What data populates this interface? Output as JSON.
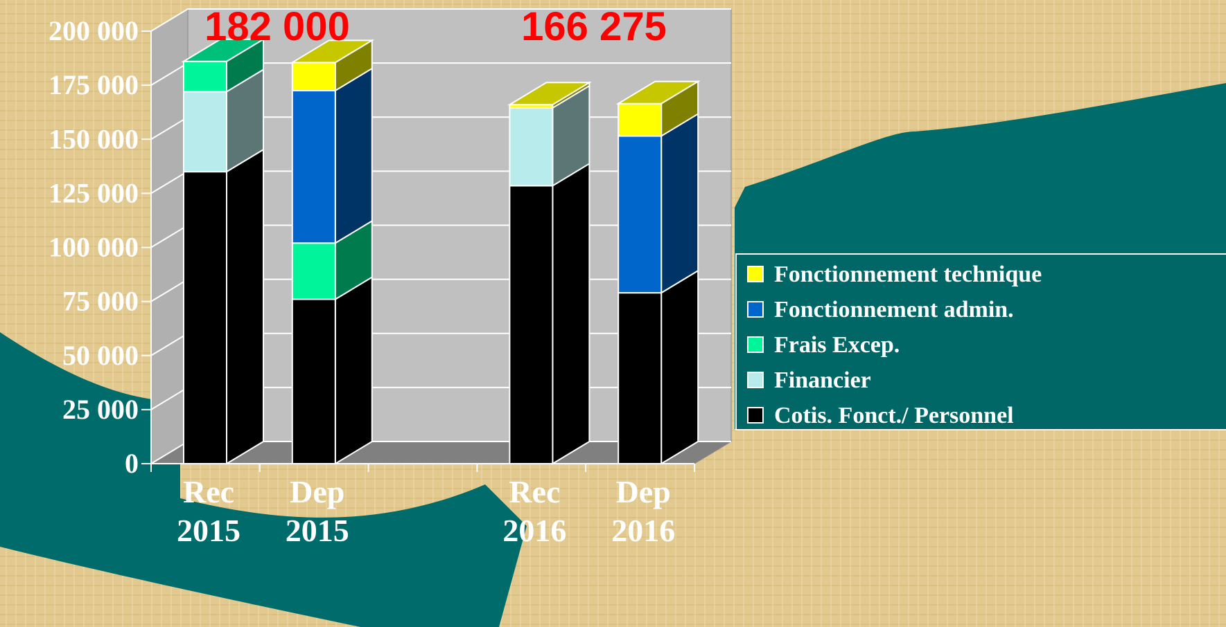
{
  "chart_data": {
    "type": "bar3d_stacked",
    "categories": [
      "Rec 2015",
      "Dep 2015",
      null,
      "Rec 2016",
      "Dep 2016"
    ],
    "series": [
      {
        "name": "Cotis. Fonct./ Personnel",
        "color": "#000000",
        "values": [
          135000,
          76000,
          null,
          128500,
          79000
        ]
      },
      {
        "name": "Financier",
        "color": "#b8ecec",
        "values": [
          37000,
          null,
          null,
          36000,
          null
        ]
      },
      {
        "name": "Frais Excep.",
        "color": "#00f59a",
        "values": [
          14000,
          26000,
          null,
          null,
          null
        ]
      },
      {
        "name": "Fonctionnement admin.",
        "color": "#0066cc",
        "values": [
          null,
          70500,
          null,
          null,
          72500
        ]
      },
      {
        "name": "Fonctionnement technique",
        "color": "#ffff00",
        "values": [
          null,
          13000,
          null,
          1500,
          15000
        ]
      }
    ],
    "annotations": [
      "182 000",
      "166 275"
    ],
    "ylim": [
      0,
      200000
    ],
    "yticks": [
      0,
      {
        "value": 25000,
        "label": "25 000"
      },
      {
        "value": 50000,
        "label": "50 000"
      },
      {
        "value": 75000,
        "label": "75 000"
      },
      {
        "value": 100000,
        "label": "100 000"
      },
      {
        "value": 125000,
        "label": "125 000"
      },
      {
        "value": 150000,
        "label": "150 000"
      },
      {
        "value": 175000,
        "label": "175 000"
      },
      {
        "value": 200000,
        "label": "200 000"
      }
    ],
    "grid": true,
    "legend": "right"
  }
}
